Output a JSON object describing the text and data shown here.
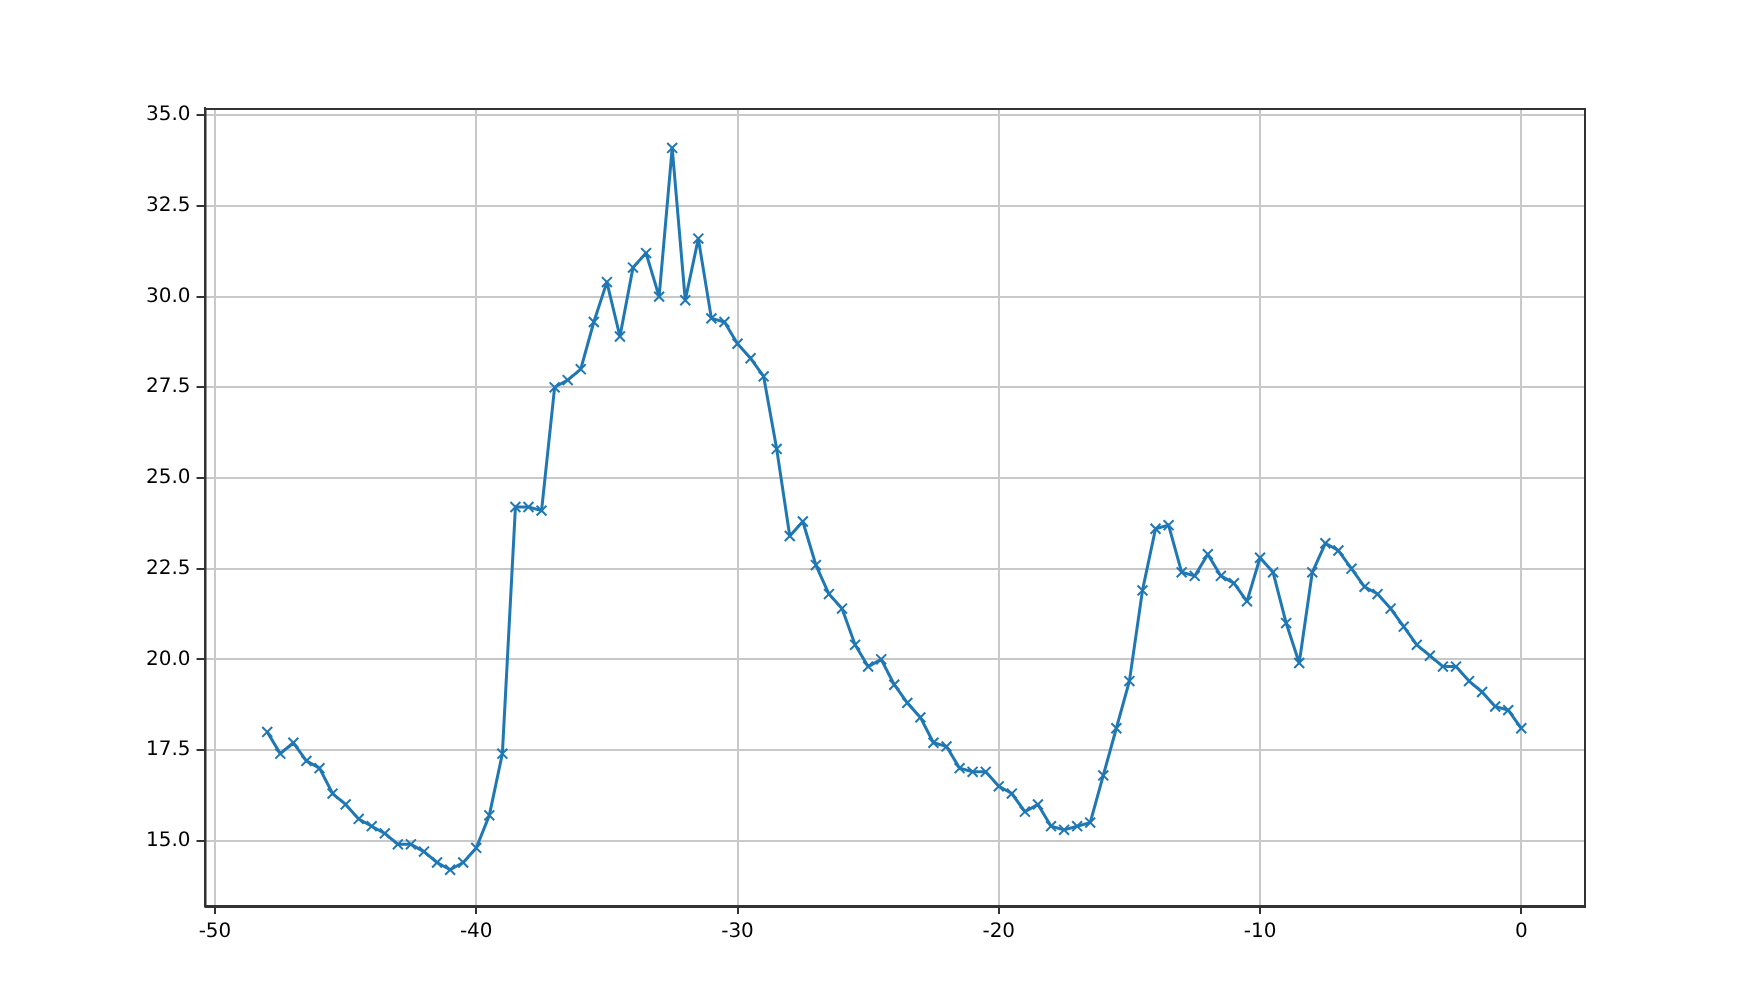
{
  "chart_data": {
    "type": "line",
    "marker": "cross",
    "line_style": "solid",
    "grid": true,
    "legend": false,
    "x": [
      -48,
      -47.5,
      -47,
      -46.5,
      -46,
      -45.5,
      -45,
      -44.5,
      -44,
      -43.5,
      -43,
      -42.5,
      -42,
      -41.5,
      -41,
      -40.5,
      -40,
      -39.5,
      -39,
      -38.5,
      -38,
      -37.5,
      -37,
      -36.5,
      -36,
      -35.5,
      -35,
      -34.5,
      -34,
      -33.5,
      -33,
      -32.5,
      -32,
      -31.5,
      -31,
      -30.5,
      -30,
      -29.5,
      -29,
      -28.5,
      -28,
      -27.5,
      -27,
      -26.5,
      -26,
      -25.5,
      -25,
      -24.5,
      -24,
      -23.5,
      -23,
      -22.5,
      -22,
      -21.5,
      -21,
      -20.5,
      -20,
      -19.5,
      -19,
      -18.5,
      -18,
      -17.5,
      -17,
      -16.5,
      -16,
      -15.5,
      -15,
      -14.5,
      -14,
      -13.5,
      -13,
      -12.5,
      -12,
      -11.5,
      -11,
      -10.5,
      -10,
      -9.5,
      -9,
      -8.5,
      -8,
      -7.5,
      -7,
      -6.5,
      -6,
      -5.5,
      -5,
      -4.5,
      -4,
      -3.5,
      -3,
      -2.5,
      -2,
      -1.5,
      -1,
      -0.5,
      0
    ],
    "series": [
      {
        "color": "#1f77b4",
        "values": [
          18.0,
          17.4,
          17.7,
          17.2,
          17.0,
          16.3,
          16.0,
          15.6,
          15.4,
          15.2,
          14.9,
          14.9,
          14.7,
          14.4,
          14.2,
          14.4,
          14.8,
          15.7,
          17.4,
          24.2,
          24.2,
          24.1,
          27.5,
          27.7,
          28.0,
          29.3,
          30.4,
          28.9,
          30.8,
          31.2,
          30.0,
          34.1,
          29.9,
          31.6,
          29.4,
          29.3,
          28.7,
          28.3,
          27.8,
          25.8,
          23.4,
          23.8,
          22.6,
          21.8,
          21.4,
          20.4,
          19.8,
          20.0,
          19.3,
          18.8,
          18.4,
          17.7,
          17.6,
          17.0,
          16.9,
          16.9,
          16.5,
          16.3,
          15.8,
          16.0,
          15.4,
          15.3,
          15.4,
          15.5,
          16.8,
          18.1,
          19.4,
          21.9,
          23.6,
          23.7,
          22.4,
          22.3,
          22.9,
          22.3,
          22.1,
          21.6,
          22.8,
          22.4,
          21.0,
          19.9,
          22.4,
          23.2,
          23.0,
          22.5,
          22.0,
          21.8,
          21.4,
          20.9,
          20.4,
          20.1,
          19.8,
          19.8,
          19.4,
          19.1,
          18.7,
          18.6,
          18.1
        ]
      }
    ],
    "xlim": [
      -50.4,
      2.4
    ],
    "xticks": [
      -50,
      -40,
      -30,
      -20,
      -10,
      0
    ],
    "ylim": [
      13.2,
      35.2
    ],
    "yticks": [
      {
        "value": 15,
        "label": "15.0"
      },
      {
        "value": 17.5,
        "label": "17.5"
      },
      {
        "value": 20,
        "label": "20.0"
      },
      {
        "value": 22.5,
        "label": "22.5"
      },
      {
        "value": 25,
        "label": "25.0"
      },
      {
        "value": 27.5,
        "label": "27.5"
      },
      {
        "value": 30,
        "label": "30.0"
      },
      {
        "value": 32.5,
        "label": "32.5"
      },
      {
        "value": 35,
        "label": "35.0"
      }
    ]
  }
}
